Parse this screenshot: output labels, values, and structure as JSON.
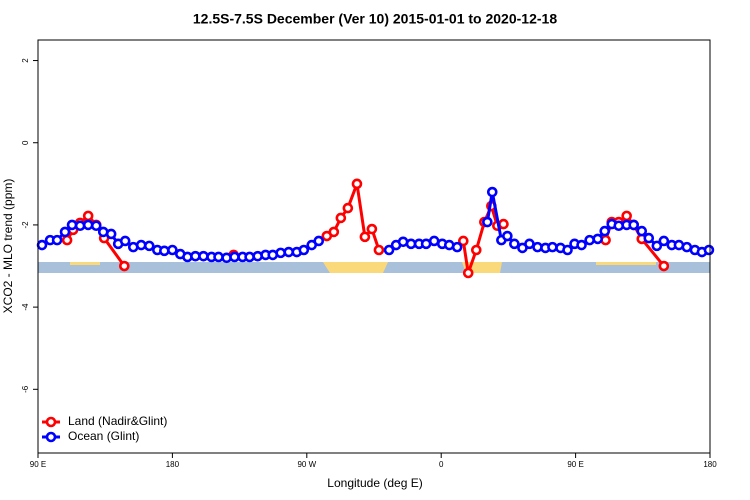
{
  "chart_data": {
    "type": "line",
    "title": "12.5S-7.5S December (Ver 10)   2015-01-01 to 2020-12-18",
    "x_label": "Longitude (deg E)",
    "y_label": "XCO2 - MLO trend (ppm)",
    "xlim": [
      90,
      540
    ],
    "xticks": [
      {
        "value": 90,
        "label": "90 E"
      },
      180,
      {
        "value": 270,
        "label": "90 W"
      },
      {
        "value": 360,
        "label": "0"
      },
      {
        "value": 450,
        "label": "90 E"
      },
      {
        "value": 540,
        "label": "180"
      }
    ],
    "ylim": [
      -7.55,
      2.5
    ],
    "yticks": [
      2,
      0,
      -2,
      -4,
      -6
    ],
    "legend": "bottom-left",
    "series": [
      {
        "name": "Land (Nadir&Glint)",
        "color": "#ff0000",
        "x": [
          109.5,
          113.5,
          118.2,
          123.6,
          129.0,
          134.3,
          147.8,
          null,
          221.0,
          null,
          283.4,
          288.1,
          292.8,
          297.5,
          303.6,
          308.9,
          313.6,
          318.3,
          null,
          374.8,
          378.1,
          383.5,
          388.9,
          393.6,
          397.6,
          401.7,
          null,
          470.1,
          474.2,
          478.9,
          484.2,
          488.9,
          494.3,
          509.1
        ],
        "values": [
          -2.37,
          -2.12,
          -1.95,
          -1.78,
          -2.0,
          -2.32,
          -3.0,
          null,
          -2.73,
          null,
          -2.27,
          -2.17,
          -1.83,
          -1.59,
          -1.0,
          -2.29,
          -2.1,
          -2.61,
          null,
          -2.39,
          -3.17,
          -2.61,
          -1.93,
          -1.54,
          -2.02,
          -1.98,
          null,
          -2.37,
          -1.93,
          -1.93,
          -1.78,
          -2.0,
          -2.34,
          -3.0
        ]
      },
      {
        "name": "Ocean (Glint)",
        "color": "#0000ff",
        "x": [
          92.7,
          98.1,
          102.8,
          108.1,
          112.8,
          118.2,
          123.6,
          129.0,
          133.7,
          139.0,
          143.7,
          148.4,
          153.8,
          159.1,
          164.5,
          169.9,
          174.6,
          180.0,
          185.3,
          190.1,
          195.4,
          200.8,
          206.2,
          210.9,
          216.3,
          221.6,
          227.0,
          231.7,
          237.1,
          242.4,
          247.2,
          252.5,
          257.9,
          263.3,
          268.0,
          273.3,
          278.0,
          null,
          325.1,
          329.8,
          334.5,
          339.8,
          345.2,
          349.9,
          355.3,
          360.7,
          365.4,
          370.7,
          null,
          390.9,
          394.2,
          400.3,
          404.3,
          409.0,
          414.4,
          419.1,
          424.5,
          429.8,
          434.5,
          439.9,
          444.6,
          449.3,
          454.0,
          459.4,
          464.8,
          469.5,
          474.2,
          478.9,
          484.2,
          488.9,
          494.3,
          499.0,
          504.4,
          509.1,
          514.4,
          519.2,
          524.5,
          529.9,
          534.6,
          539.3
        ],
        "values": [
          -2.49,
          -2.37,
          -2.37,
          -2.17,
          -2.0,
          -2.02,
          -2.0,
          -2.02,
          -2.17,
          -2.22,
          -2.46,
          -2.39,
          -2.54,
          -2.49,
          -2.51,
          -2.61,
          -2.63,
          -2.61,
          -2.71,
          -2.78,
          -2.76,
          -2.76,
          -2.78,
          -2.78,
          -2.8,
          -2.78,
          -2.78,
          -2.78,
          -2.76,
          -2.73,
          -2.73,
          -2.68,
          -2.66,
          -2.66,
          -2.61,
          -2.49,
          -2.39,
          null,
          -2.61,
          -2.49,
          -2.41,
          -2.46,
          -2.46,
          -2.46,
          -2.39,
          -2.46,
          -2.49,
          -2.54,
          null,
          -1.93,
          -1.2,
          -2.37,
          -2.27,
          -2.46,
          -2.56,
          -2.46,
          -2.54,
          -2.56,
          -2.54,
          -2.56,
          -2.61,
          -2.46,
          -2.49,
          -2.37,
          -2.34,
          -2.15,
          -1.98,
          -2.02,
          -2.0,
          -2.0,
          -2.15,
          -2.32,
          -2.51,
          -2.39,
          -2.49,
          -2.49,
          -2.54,
          -2.61,
          -2.66,
          -2.61
        ]
      }
    ]
  }
}
